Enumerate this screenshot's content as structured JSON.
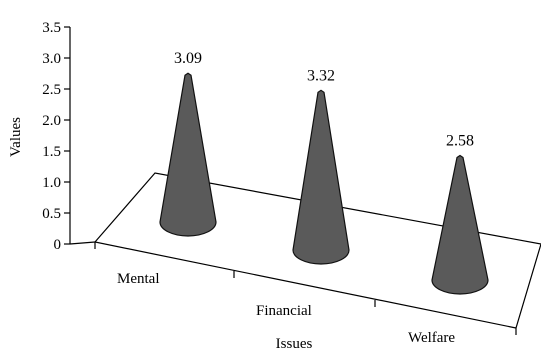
{
  "chart_data": {
    "type": "bar",
    "style": "3d-cone",
    "categories": [
      "Mental",
      "Financial",
      "Welfare"
    ],
    "values": [
      3.09,
      3.32,
      2.58
    ],
    "value_labels": [
      "3.09",
      "3.32",
      "2.58"
    ],
    "title": "",
    "xlabel": "Issues",
    "ylabel": "Values",
    "ylim": [
      0,
      3.5
    ],
    "yticks": [
      "0",
      "0.5",
      "1.0",
      "1.5",
      "2.0",
      "2.5",
      "3.0",
      "3.5"
    ],
    "grid": false,
    "legend": "none",
    "colors": {
      "cone": "#5a5a5a",
      "cone_edge": "#111111",
      "axis": "#000000"
    }
  }
}
